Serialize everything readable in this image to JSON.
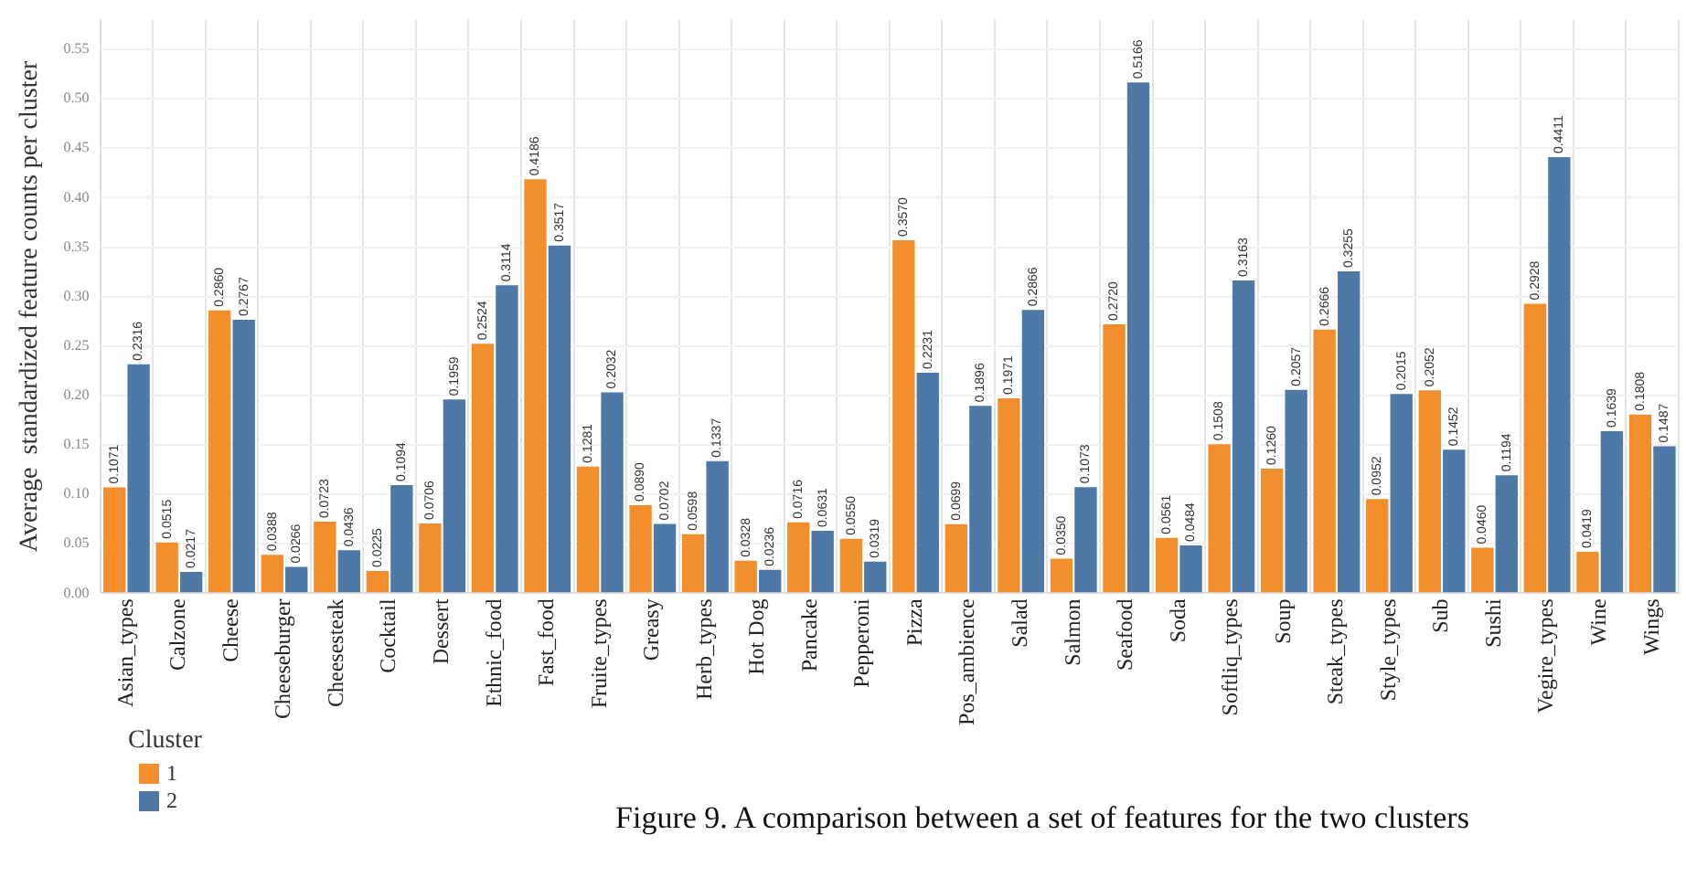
{
  "chart_data": {
    "type": "bar",
    "ylabel": "Average  standardized feature counts per cluster",
    "categories": [
      "Asian_types",
      "Calzone",
      "Cheese",
      "Cheeseburger",
      "Cheesesteak",
      "Cocktail",
      "Dessert",
      "Ethnic_food",
      "Fast_food",
      "Fruite_types",
      "Greasy",
      "Herb_types",
      "Hot Dog",
      "Pancake",
      "Pepperoni",
      "Pizza",
      "Pos_ambience",
      "Salad",
      "Salmon",
      "Seafood",
      "Soda",
      "Softliq_types",
      "Soup",
      "Steak_types",
      "Style_types",
      "Sub",
      "Sushi",
      "Vegire_types",
      "Wine",
      "Wings"
    ],
    "series": [
      {
        "name": "1",
        "color": "#f28e2b",
        "values": [
          0.1071,
          0.0515,
          0.286,
          0.0388,
          0.0723,
          0.0225,
          0.0706,
          0.2524,
          0.4186,
          0.1281,
          0.089,
          0.0598,
          0.0328,
          0.0716,
          0.055,
          0.357,
          0.0699,
          0.1971,
          0.035,
          0.272,
          0.0561,
          0.1508,
          0.126,
          0.2666,
          0.0952,
          0.2052,
          0.046,
          0.2928,
          0.0419,
          0.1808
        ],
        "value_labels": [
          "0.1071",
          "0.0515",
          "0.2860",
          "0.0388",
          "0.0723",
          "0.0225",
          "0.0706",
          "0.2524",
          "0.4186",
          "0.1281",
          "0.0890",
          "0.0598",
          "0.0328",
          "0.0716",
          "0.0550",
          "0.3570",
          "0.0699",
          "0.1971",
          "0.0350",
          "0.2720",
          "0.0561",
          "0.1508",
          "0.1260",
          "0.2666",
          "0.0952",
          "0.2052",
          "0.0460",
          "0.2928",
          "0.0419",
          "0.1808"
        ]
      },
      {
        "name": "2",
        "color": "#4e79a7",
        "values": [
          0.2316,
          0.0217,
          0.2767,
          0.0266,
          0.0436,
          0.1094,
          0.1959,
          0.3114,
          0.3517,
          0.2032,
          0.0702,
          0.1337,
          0.0236,
          0.0631,
          0.0319,
          0.2231,
          0.1896,
          0.2866,
          0.1073,
          0.5166,
          0.0484,
          0.3163,
          0.2057,
          0.3255,
          0.2015,
          0.1452,
          0.1194,
          0.4411,
          0.1639,
          0.1487
        ],
        "value_labels": [
          "0.2316",
          "0.0217",
          "0.2767",
          "0.0266",
          "0.0436",
          "0.1094",
          "0.1959",
          "0.3114",
          "0.3517",
          "0.2032",
          "0.0702",
          "0.1337",
          "0.0236",
          "0.0631",
          "0.0319",
          "0.2231",
          "0.1896",
          "0.2866",
          "0.1073",
          "0.5166",
          "0.0484",
          "0.3163",
          "0.2057",
          "0.3255",
          "0.2015",
          "0.1452",
          "0.1194",
          "0.4411",
          "0.1639",
          "0.1487"
        ]
      }
    ],
    "ylim": [
      0,
      0.58
    ],
    "yticks": [
      {
        "value": 0,
        "label": "0.00"
      },
      0.05,
      {
        "value": 0.1,
        "label": "0.10"
      },
      0.15,
      {
        "value": 0.2,
        "label": "0.20"
      },
      0.25,
      {
        "value": 0.3,
        "label": "0.30"
      },
      0.35,
      {
        "value": 0.4,
        "label": "0.40"
      },
      0.45,
      {
        "value": 0.5,
        "label": "0.50"
      },
      0.55
    ],
    "grid": true,
    "legend": "bottom left",
    "legend_title": "Cluster",
    "annotations": [
      "Figure 9. A comparison between a set of features for the two clusters"
    ]
  }
}
